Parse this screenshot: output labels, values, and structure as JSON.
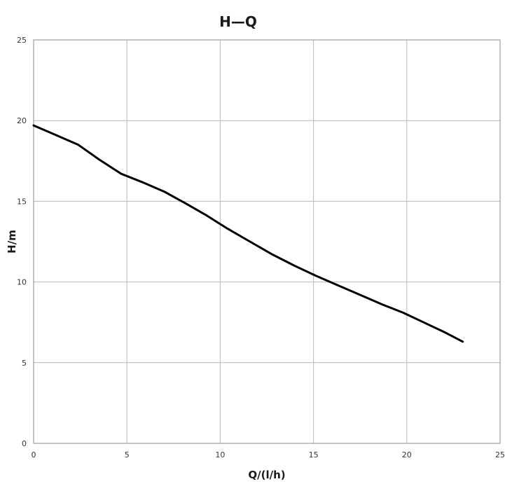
{
  "chart_data": {
    "type": "line",
    "title": "H—Q",
    "xlabel": "Q/(l/h)",
    "ylabel": "H/m",
    "xlim": [
      0,
      25
    ],
    "ylim": [
      0,
      25
    ],
    "xticks": [
      0,
      5,
      10,
      15,
      20,
      25
    ],
    "yticks": [
      0,
      5,
      10,
      15,
      20,
      25
    ],
    "grid": true,
    "legend": "none",
    "series": [
      {
        "color": "#000000",
        "x": [
          0,
          1.2,
          2.4,
          3.5,
          4.7,
          5.8,
          7.0,
          8.1,
          9.3,
          10.4,
          11.6,
          12.8,
          14.0,
          15.1,
          16.3,
          17.5,
          18.7,
          19.8,
          20.9,
          22.0,
          23.0
        ],
        "y": [
          19.7,
          19.1,
          18.5,
          17.6,
          16.7,
          16.2,
          15.6,
          14.9,
          14.1,
          13.3,
          12.5,
          11.7,
          11.0,
          10.4,
          9.8,
          9.2,
          8.6,
          8.1,
          7.5,
          6.9,
          6.3
        ]
      }
    ]
  }
}
